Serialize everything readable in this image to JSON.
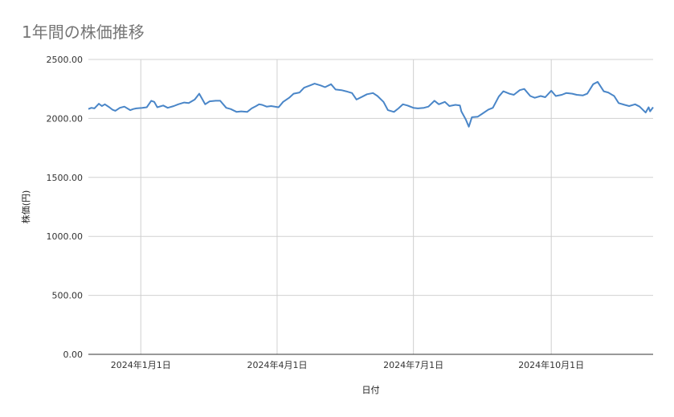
{
  "chart_data": {
    "type": "line",
    "title": "1年間の株価推移",
    "xlabel": "日付",
    "ylabel": "株価(円)",
    "ylim": [
      0,
      2500
    ],
    "yticks": [
      "0.00",
      "500.00",
      "1000.00",
      "1500.00",
      "2000.00",
      "2500.00"
    ],
    "xticks": [
      {
        "label": "2024年1月1日",
        "date": "2024-01-01"
      },
      {
        "label": "2024年4月1日",
        "date": "2024-04-01"
      },
      {
        "label": "2024年7月1日",
        "date": "2024-07-01"
      },
      {
        "label": "2024年10月1日",
        "date": "2024-10-01"
      }
    ],
    "xlim": [
      "2023-11-27",
      "2024-12-08"
    ],
    "grid": true,
    "line_color": "#4a86c8",
    "series": [
      {
        "x": [
          "2023-11-27",
          "2023-11-29",
          "2023-12-01",
          "2023-12-04",
          "2023-12-06",
          "2023-12-08",
          "2023-12-11",
          "2023-12-13",
          "2023-12-15",
          "2023-12-18",
          "2023-12-21",
          "2023-12-25",
          "2023-12-27",
          "2023-12-29",
          "2024-01-02",
          "2024-01-05",
          "2024-01-08",
          "2024-01-10",
          "2024-01-12",
          "2024-01-16",
          "2024-01-19",
          "2024-01-23",
          "2024-01-26",
          "2024-01-30",
          "2024-02-02",
          "2024-02-06",
          "2024-02-09",
          "2024-02-13",
          "2024-02-16",
          "2024-02-20",
          "2024-02-23",
          "2024-02-27",
          "2024-03-01",
          "2024-03-05",
          "2024-03-08",
          "2024-03-12",
          "2024-03-15",
          "2024-03-18",
          "2024-03-20",
          "2024-03-22",
          "2024-03-25",
          "2024-03-28",
          "2024-04-02",
          "2024-04-05",
          "2024-04-09",
          "2024-04-12",
          "2024-04-16",
          "2024-04-19",
          "2024-04-23",
          "2024-04-26",
          "2024-04-30",
          "2024-05-03",
          "2024-05-07",
          "2024-05-10",
          "2024-05-14",
          "2024-05-17",
          "2024-05-21",
          "2024-05-24",
          "2024-05-28",
          "2024-05-31",
          "2024-06-04",
          "2024-06-07",
          "2024-06-11",
          "2024-06-14",
          "2024-06-18",
          "2024-06-21",
          "2024-06-24",
          "2024-06-27",
          "2024-07-01",
          "2024-07-04",
          "2024-07-08",
          "2024-07-11",
          "2024-07-15",
          "2024-07-18",
          "2024-07-22",
          "2024-07-25",
          "2024-07-29",
          "2024-08-01",
          "2024-08-02",
          "2024-08-05",
          "2024-08-07",
          "2024-08-09",
          "2024-08-13",
          "2024-08-16",
          "2024-08-20",
          "2024-08-23",
          "2024-08-27",
          "2024-08-30",
          "2024-09-03",
          "2024-09-06",
          "2024-09-10",
          "2024-09-13",
          "2024-09-17",
          "2024-09-20",
          "2024-09-24",
          "2024-09-27",
          "2024-10-01",
          "2024-10-04",
          "2024-10-08",
          "2024-10-11",
          "2024-10-15",
          "2024-10-18",
          "2024-10-22",
          "2024-10-25",
          "2024-10-29",
          "2024-11-01",
          "2024-11-05",
          "2024-11-08",
          "2024-11-12",
          "2024-11-15",
          "2024-11-19",
          "2024-11-22",
          "2024-11-26",
          "2024-11-29",
          "2024-12-03",
          "2024-12-05",
          "2024-12-06",
          "2024-12-08"
        ],
        "y": [
          2080,
          2090,
          2085,
          2125,
          2105,
          2120,
          2095,
          2075,
          2065,
          2090,
          2100,
          2070,
          2080,
          2085,
          2090,
          2095,
          2150,
          2140,
          2095,
          2110,
          2090,
          2105,
          2120,
          2135,
          2130,
          2160,
          2210,
          2120,
          2145,
          2150,
          2150,
          2090,
          2080,
          2055,
          2060,
          2055,
          2085,
          2105,
          2120,
          2115,
          2100,
          2105,
          2095,
          2140,
          2175,
          2210,
          2220,
          2260,
          2280,
          2295,
          2280,
          2265,
          2290,
          2245,
          2240,
          2230,
          2215,
          2160,
          2185,
          2205,
          2215,
          2190,
          2140,
          2070,
          2055,
          2085,
          2120,
          2110,
          2090,
          2085,
          2090,
          2100,
          2150,
          2120,
          2140,
          2105,
          2115,
          2110,
          2060,
          1990,
          1930,
          2010,
          2015,
          2040,
          2075,
          2090,
          2185,
          2230,
          2210,
          2200,
          2240,
          2250,
          2190,
          2175,
          2190,
          2180,
          2235,
          2190,
          2200,
          2215,
          2210,
          2200,
          2195,
          2210,
          2290,
          2310,
          2230,
          2220,
          2190,
          2130,
          2115,
          2105,
          2120,
          2100,
          2050,
          2095,
          2060,
          2095
        ]
      }
    ]
  }
}
